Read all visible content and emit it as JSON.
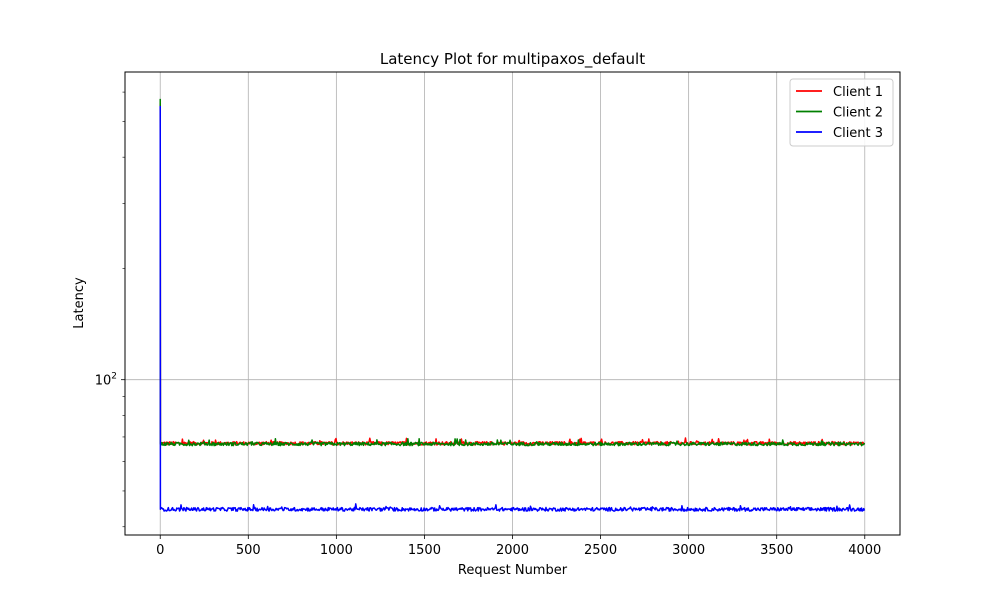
{
  "chart_data": {
    "type": "line",
    "title": "Latency Plot for multipaxos_default",
    "xlabel": "Request Number",
    "ylabel": "Latency",
    "yscale": "log",
    "xlim": [
      -200,
      4200
    ],
    "ylim": [
      38,
      680
    ],
    "x_ticks": [
      0,
      500,
      1000,
      1500,
      2000,
      2500,
      3000,
      3500,
      4000
    ],
    "y_major_ticks": [
      {
        "value": 100,
        "label": "10",
        "exponent": "2"
      }
    ],
    "y_minor_ticks": [
      40,
      50,
      60,
      70,
      80,
      90,
      200,
      300,
      400,
      500,
      600
    ],
    "grid": true,
    "legend_position": "top-right",
    "series": [
      {
        "name": "Client 1",
        "color": "#ff0000",
        "x_start": 0,
        "x_end": 4000,
        "spike": 560,
        "baseline": 67.3,
        "noise": 0.7
      },
      {
        "name": "Client 2",
        "color": "#008000",
        "x_start": 0,
        "x_end": 4000,
        "spike": 575,
        "baseline": 67.0,
        "noise": 0.7
      },
      {
        "name": "Client 3",
        "color": "#0000ff",
        "x_start": 0,
        "x_end": 4000,
        "spike": 550,
        "baseline": 44.6,
        "noise": 0.5
      }
    ]
  }
}
